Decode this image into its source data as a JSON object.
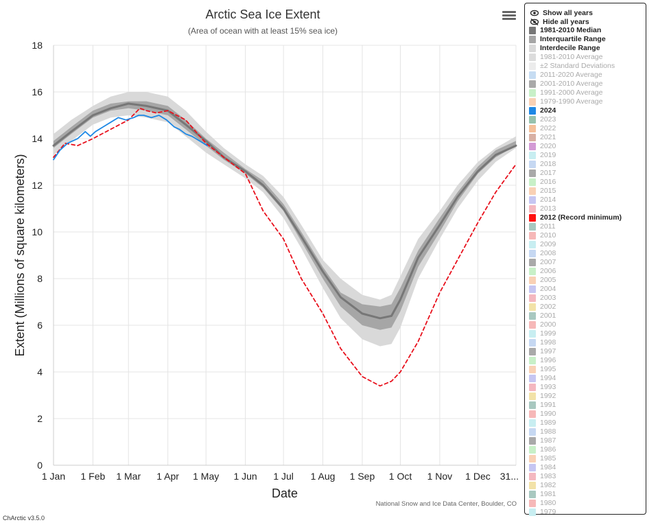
{
  "chart_data": {
    "type": "line",
    "title": "Arctic Sea Ice Extent",
    "subtitle": "(Area of ocean with at least 15% sea ice)",
    "xlabel": "Date",
    "ylabel": "Extent (Millions of square kilometers)",
    "ylim": [
      0,
      18
    ],
    "yticks": [
      0,
      2,
      4,
      6,
      8,
      10,
      12,
      14,
      16,
      18
    ],
    "xticks": [
      "1 Jan",
      "1 Feb",
      "1 Mar",
      "1 Apr",
      "1 May",
      "1 Jun",
      "1 Jul",
      "1 Aug",
      "1 Sep",
      "1 Oct",
      "1 Nov",
      "1 Dec",
      "31..."
    ],
    "grid": true,
    "legend_placement": "right",
    "x_unit": "day of year",
    "bands": [
      {
        "name": "Interdecile Range",
        "color": "#d9d9d9",
        "x": [
          1,
          15,
          32,
          46,
          60,
          74,
          91,
          105,
          121,
          135,
          152,
          166,
          182,
          196,
          213,
          227,
          244,
          258,
          267,
          274,
          288,
          305,
          319,
          335,
          349,
          365
        ],
        "low": [
          13.3,
          13.9,
          14.6,
          14.9,
          15.0,
          14.9,
          14.7,
          14.1,
          13.4,
          12.9,
          12.3,
          11.7,
          10.6,
          9.3,
          7.6,
          6.3,
          5.4,
          5.1,
          5.2,
          5.9,
          8.0,
          9.7,
          11.0,
          12.2,
          13.0,
          13.6
        ],
        "high": [
          14.2,
          14.8,
          15.4,
          15.8,
          16.0,
          16.0,
          15.8,
          15.2,
          14.3,
          13.6,
          12.9,
          12.4,
          11.5,
          10.3,
          8.8,
          8.0,
          7.3,
          7.1,
          7.3,
          8.1,
          9.7,
          10.9,
          12.0,
          13.0,
          13.6,
          14.1
        ]
      },
      {
        "name": "Interquartile Range",
        "color": "#a6a6a6",
        "x": [
          1,
          15,
          32,
          46,
          60,
          74,
          91,
          105,
          121,
          135,
          152,
          166,
          182,
          196,
          213,
          227,
          244,
          258,
          267,
          274,
          288,
          305,
          319,
          335,
          349,
          365
        ],
        "low": [
          13.6,
          14.2,
          14.9,
          15.2,
          15.3,
          15.2,
          15.0,
          14.4,
          13.7,
          13.1,
          12.5,
          11.9,
          10.9,
          9.6,
          8.0,
          6.8,
          6.0,
          5.8,
          5.9,
          6.6,
          8.5,
          10.0,
          11.3,
          12.5,
          13.2,
          13.7
        ],
        "high": [
          13.9,
          14.5,
          15.2,
          15.5,
          15.6,
          15.6,
          15.4,
          14.8,
          14.0,
          13.4,
          12.7,
          12.2,
          11.2,
          10.0,
          8.5,
          7.4,
          6.9,
          6.8,
          6.9,
          7.6,
          9.2,
          10.6,
          11.7,
          12.8,
          13.5,
          13.9
        ]
      }
    ],
    "series": [
      {
        "name": "1981-2010 Median",
        "color": "#777777",
        "dash": "none",
        "width": 3,
        "x": [
          1,
          15,
          32,
          46,
          60,
          74,
          91,
          105,
          121,
          135,
          152,
          166,
          182,
          196,
          213,
          227,
          244,
          258,
          267,
          274,
          288,
          305,
          319,
          335,
          349,
          365
        ],
        "values": [
          13.7,
          14.3,
          15.0,
          15.3,
          15.5,
          15.4,
          15.2,
          14.6,
          13.9,
          13.2,
          12.6,
          12.0,
          11.0,
          9.8,
          8.3,
          7.2,
          6.5,
          6.3,
          6.4,
          7.1,
          8.9,
          10.3,
          11.5,
          12.6,
          13.3,
          13.7
        ]
      },
      {
        "name": "2012 (Record minimum)",
        "color": "#e8101c",
        "dash": "5,4",
        "width": 1.8,
        "x": [
          1,
          10,
          20,
          32,
          46,
          60,
          69,
          74,
          82,
          91,
          105,
          121,
          135,
          152,
          166,
          182,
          196,
          213,
          227,
          244,
          258,
          267,
          274,
          288,
          305,
          319,
          335,
          349,
          365
        ],
        "values": [
          13.2,
          13.8,
          13.7,
          14.0,
          14.4,
          14.8,
          15.3,
          15.2,
          15.1,
          15.2,
          14.8,
          13.8,
          13.2,
          12.5,
          10.9,
          9.7,
          8.0,
          6.5,
          5.0,
          3.8,
          3.4,
          3.6,
          4.0,
          5.3,
          7.4,
          8.8,
          10.4,
          11.7,
          12.9
        ]
      },
      {
        "name": "2024",
        "color": "#1e88e5",
        "dash": "none",
        "width": 1.8,
        "x": [
          1,
          6,
          12,
          20,
          26,
          30,
          34,
          40,
          46,
          52,
          58,
          64,
          68,
          72,
          78,
          84,
          90,
          96,
          100,
          105,
          110,
          116,
          122
        ],
        "values": [
          13.1,
          13.5,
          13.8,
          14.0,
          14.3,
          14.1,
          14.3,
          14.5,
          14.7,
          14.9,
          14.8,
          14.9,
          15.0,
          15.0,
          14.9,
          15.0,
          14.8,
          14.5,
          14.4,
          14.2,
          14.1,
          13.9,
          13.7
        ]
      }
    ]
  },
  "legend": {
    "show_all": "Show all years",
    "hide_all": "Hide all years",
    "items": [
      {
        "label": "1981-2010 Median",
        "color": "#777777",
        "active": true
      },
      {
        "label": "Interquartile Range",
        "color": "#a6a6a6",
        "active": true
      },
      {
        "label": "Interdecile Range",
        "color": "#d9d9d9",
        "active": true
      },
      {
        "label": "1981-2010 Average",
        "color": "#dcdcdc",
        "active": false
      },
      {
        "label": "±2 Standard Deviations",
        "color": "#ececec",
        "active": false
      },
      {
        "label": "2011-2020 Average",
        "color": "#c6dcf2",
        "active": false
      },
      {
        "label": "2001-2010 Average",
        "color": "#a9a9a9",
        "active": false
      },
      {
        "label": "1991-2000 Average",
        "color": "#c8f0c8",
        "active": false
      },
      {
        "label": "1979-1990 Average",
        "color": "#f9d1b5",
        "active": false
      },
      {
        "label": "2024",
        "color": "#1e88e5",
        "active": true
      },
      {
        "label": "2023",
        "color": "#97c2ad",
        "active": false
      },
      {
        "label": "2022",
        "color": "#f4c09a",
        "active": false
      },
      {
        "label": "2021",
        "color": "#d8b0a4",
        "active": false
      },
      {
        "label": "2020",
        "color": "#d39ad5",
        "active": false
      },
      {
        "label": "2019",
        "color": "#c8eef1",
        "active": false
      },
      {
        "label": "2018",
        "color": "#c6d8f2",
        "active": false
      },
      {
        "label": "2017",
        "color": "#a9a9a9",
        "active": false
      },
      {
        "label": "2016",
        "color": "#c8f0c8",
        "active": false
      },
      {
        "label": "2015",
        "color": "#f9d1b5",
        "active": false
      },
      {
        "label": "2014",
        "color": "#c6c6f2",
        "active": false
      },
      {
        "label": "2013",
        "color": "#f4b8c0",
        "active": false
      },
      {
        "label": "2012 (Record minimum)",
        "color": "#ff1010",
        "active": true
      },
      {
        "label": "2011",
        "color": "#a8c8c0",
        "active": false
      },
      {
        "label": "2010",
        "color": "#f6b8b8",
        "active": false
      },
      {
        "label": "2009",
        "color": "#c8eef1",
        "active": false
      },
      {
        "label": "2008",
        "color": "#c6d8f2",
        "active": false
      },
      {
        "label": "2007",
        "color": "#a9a9a9",
        "active": false
      },
      {
        "label": "2006",
        "color": "#c8f0c8",
        "active": false
      },
      {
        "label": "2005",
        "color": "#f9d1b5",
        "active": false
      },
      {
        "label": "2004",
        "color": "#c6c6f2",
        "active": false
      },
      {
        "label": "2003",
        "color": "#f4b8c0",
        "active": false
      },
      {
        "label": "2002",
        "color": "#f2e2a8",
        "active": false
      },
      {
        "label": "2001",
        "color": "#a8c8c0",
        "active": false
      },
      {
        "label": "2000",
        "color": "#f6b8b8",
        "active": false
      },
      {
        "label": "1999",
        "color": "#c8eef1",
        "active": false
      },
      {
        "label": "1998",
        "color": "#c6d8f2",
        "active": false
      },
      {
        "label": "1997",
        "color": "#a9a9a9",
        "active": false
      },
      {
        "label": "1996",
        "color": "#c8f0c8",
        "active": false
      },
      {
        "label": "1995",
        "color": "#f9d1b5",
        "active": false
      },
      {
        "label": "1994",
        "color": "#c6c6f2",
        "active": false
      },
      {
        "label": "1993",
        "color": "#f4b8c0",
        "active": false
      },
      {
        "label": "1992",
        "color": "#f2e2a8",
        "active": false
      },
      {
        "label": "1991",
        "color": "#a8c8c0",
        "active": false
      },
      {
        "label": "1990",
        "color": "#f6b8b8",
        "active": false
      },
      {
        "label": "1989",
        "color": "#c8eef1",
        "active": false
      },
      {
        "label": "1988",
        "color": "#c6d8f2",
        "active": false
      },
      {
        "label": "1987",
        "color": "#a9a9a9",
        "active": false
      },
      {
        "label": "1986",
        "color": "#c8f0c8",
        "active": false
      },
      {
        "label": "1985",
        "color": "#f9d1b5",
        "active": false
      },
      {
        "label": "1984",
        "color": "#c6c6f2",
        "active": false
      },
      {
        "label": "1983",
        "color": "#f4b8c0",
        "active": false
      },
      {
        "label": "1982",
        "color": "#f2e2a8",
        "active": false
      },
      {
        "label": "1981",
        "color": "#a8c8c0",
        "active": false
      },
      {
        "label": "1980",
        "color": "#f6b8b8",
        "active": false
      },
      {
        "label": "1979",
        "color": "#c8eef1",
        "active": false
      }
    ]
  },
  "credit": "National Snow and Ice Data Center, Boulder, CO",
  "version": "ChArctic v3.5.0",
  "icons": {
    "menu": "hamburger-menu-icon",
    "show": "eye-icon",
    "hide": "eye-slash-icon"
  }
}
